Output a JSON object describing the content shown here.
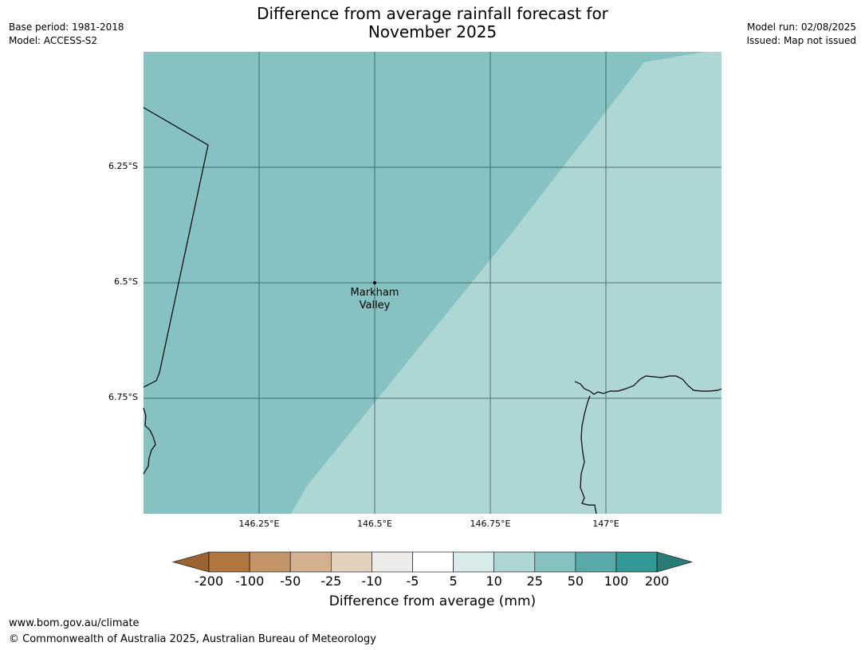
{
  "header": {
    "title_line1": "Difference from average rainfall forecast for",
    "title_line2": "November 2025",
    "base_period": "Base period: 1981-2018",
    "model": "Model: ACCESS-S2",
    "model_run": "Model run: 02/08/2025",
    "issued": "Issued: Map not issued"
  },
  "map": {
    "lat_labels": [
      "6.25°S",
      "6.5°S",
      "6.75°S"
    ],
    "lon_labels": [
      "146.25°E",
      "146.5°E",
      "146.75°E",
      "147°E"
    ],
    "place": {
      "name_line1": "Markham",
      "name_line2": "Valley"
    },
    "colors": {
      "region_25_50": "#86c2c1",
      "region_10_25": "#aed6d5",
      "coastline": "#000000",
      "gridline": "#2f4f4f"
    }
  },
  "colorbar": {
    "title": "Difference from average (mm)",
    "labels": [
      "-200",
      "-100",
      "-50",
      "-25",
      "-10",
      "-5",
      "5",
      "10",
      "25",
      "50",
      "100",
      "200"
    ],
    "colors": [
      "#9c6332",
      "#b0763e",
      "#c49469",
      "#d4b08f",
      "#e4d1bd",
      "#eeebe8",
      "#ffffff",
      "#d7ebea",
      "#aed6d5",
      "#86c2c1",
      "#5aa9a9",
      "#339896",
      "#2a7a78"
    ]
  },
  "footer": {
    "url": "www.bom.gov.au/climate",
    "copyright": "© Commonwealth of Australia 2025, Australian Bureau of Meteorology"
  }
}
